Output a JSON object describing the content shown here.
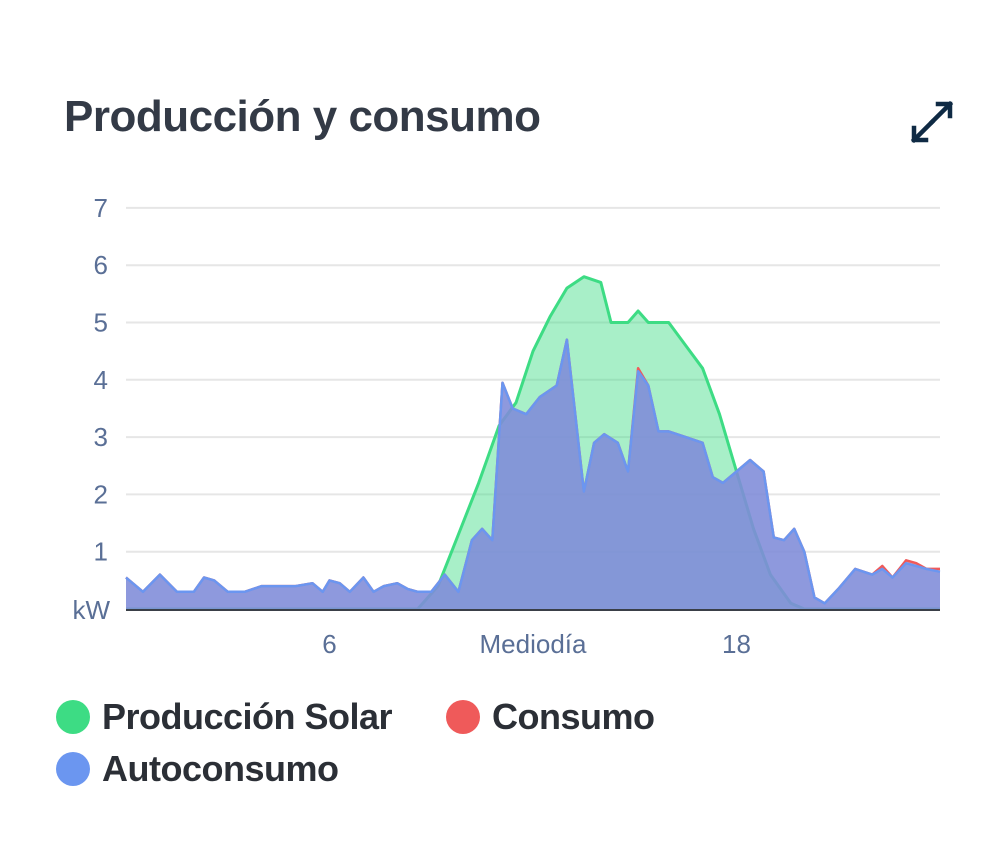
{
  "header": {
    "title": "Producción y consumo",
    "expand_icon": "expand-arrows-icon"
  },
  "colors": {
    "produccion": "#3ddc84",
    "consumo": "#ef5a5a",
    "autoconsumo": "#6b96f0",
    "axis_text": "#5a6f96",
    "grid": "#e6e6e6"
  },
  "legend": [
    {
      "key": "produccion",
      "label": "Producción Solar"
    },
    {
      "key": "consumo",
      "label": "Consumo"
    },
    {
      "key": "autoconsumo",
      "label": "Autoconsumo"
    }
  ],
  "chart_data": {
    "type": "area",
    "title": "Producción y consumo",
    "ylabel": "kW",
    "xlabel": "",
    "xlim": [
      0,
      24
    ],
    "ylim": [
      0,
      7
    ],
    "y_ticks": [
      1,
      2,
      3,
      4,
      5,
      6,
      7
    ],
    "x_ticks": [
      {
        "value": 6,
        "label": "6"
      },
      {
        "value": 12,
        "label": "Mediodía"
      },
      {
        "value": 18,
        "label": "18"
      }
    ],
    "grid": true,
    "legend_position": "bottom",
    "series": [
      {
        "key": "produccion",
        "name": "Producción Solar",
        "points": [
          [
            0,
            0
          ],
          [
            8.6,
            0
          ],
          [
            9.2,
            0.4
          ],
          [
            9.8,
            1.3
          ],
          [
            10.4,
            2.2
          ],
          [
            11.0,
            3.2
          ],
          [
            11.5,
            3.6
          ],
          [
            12.0,
            4.5
          ],
          [
            12.5,
            5.1
          ],
          [
            13.0,
            5.6
          ],
          [
            13.5,
            5.8
          ],
          [
            14.0,
            5.7
          ],
          [
            14.3,
            5.0
          ],
          [
            14.8,
            5.0
          ],
          [
            15.1,
            5.2
          ],
          [
            15.4,
            5.0
          ],
          [
            16.0,
            5.0
          ],
          [
            16.5,
            4.6
          ],
          [
            17.0,
            4.2
          ],
          [
            17.5,
            3.4
          ],
          [
            18.0,
            2.4
          ],
          [
            18.5,
            1.4
          ],
          [
            19.0,
            0.6
          ],
          [
            19.6,
            0.1
          ],
          [
            20.0,
            0
          ],
          [
            24,
            0
          ]
        ]
      },
      {
        "key": "consumo",
        "name": "Consumo",
        "points": [
          [
            0,
            0.55
          ],
          [
            0.5,
            0.3
          ],
          [
            1.0,
            0.6
          ],
          [
            1.5,
            0.3
          ],
          [
            2.0,
            0.3
          ],
          [
            2.3,
            0.55
          ],
          [
            2.6,
            0.5
          ],
          [
            3.0,
            0.3
          ],
          [
            3.5,
            0.3
          ],
          [
            4.0,
            0.4
          ],
          [
            4.5,
            0.4
          ],
          [
            5.0,
            0.4
          ],
          [
            5.5,
            0.45
          ],
          [
            5.8,
            0.3
          ],
          [
            6.0,
            0.5
          ],
          [
            6.3,
            0.45
          ],
          [
            6.6,
            0.3
          ],
          [
            7.0,
            0.55
          ],
          [
            7.3,
            0.3
          ],
          [
            7.6,
            0.4
          ],
          [
            8.0,
            0.45
          ],
          [
            8.3,
            0.35
          ],
          [
            8.6,
            0.3
          ],
          [
            9.0,
            0.3
          ],
          [
            9.4,
            0.6
          ],
          [
            9.8,
            0.3
          ],
          [
            10.2,
            1.2
          ],
          [
            10.5,
            1.4
          ],
          [
            10.8,
            1.2
          ],
          [
            11.1,
            3.95
          ],
          [
            11.4,
            3.5
          ],
          [
            11.8,
            3.4
          ],
          [
            12.2,
            3.7
          ],
          [
            12.7,
            3.9
          ],
          [
            13.0,
            4.7
          ],
          [
            13.5,
            2.05
          ],
          [
            13.8,
            2.9
          ],
          [
            14.1,
            3.05
          ],
          [
            14.5,
            2.9
          ],
          [
            14.8,
            2.4
          ],
          [
            15.1,
            4.2
          ],
          [
            15.4,
            3.9
          ],
          [
            15.7,
            3.1
          ],
          [
            16.0,
            3.1
          ],
          [
            16.5,
            3.0
          ],
          [
            17.0,
            2.9
          ],
          [
            17.3,
            2.3
          ],
          [
            17.6,
            2.2
          ],
          [
            18.0,
            2.4
          ],
          [
            18.4,
            2.6
          ],
          [
            18.8,
            2.4
          ],
          [
            19.1,
            1.25
          ],
          [
            19.4,
            1.2
          ],
          [
            19.7,
            1.4
          ],
          [
            20.0,
            1.0
          ],
          [
            20.3,
            0.2
          ],
          [
            20.6,
            0.1
          ],
          [
            21.0,
            0.35
          ],
          [
            21.5,
            0.7
          ],
          [
            22.0,
            0.6
          ],
          [
            22.3,
            0.75
          ],
          [
            22.6,
            0.55
          ],
          [
            23.0,
            0.85
          ],
          [
            23.3,
            0.8
          ],
          [
            23.6,
            0.7
          ],
          [
            24,
            0.7
          ]
        ]
      },
      {
        "key": "autoconsumo",
        "name": "Autoconsumo",
        "points": [
          [
            0,
            0.55
          ],
          [
            0.5,
            0.3
          ],
          [
            1.0,
            0.6
          ],
          [
            1.5,
            0.3
          ],
          [
            2.0,
            0.3
          ],
          [
            2.3,
            0.55
          ],
          [
            2.6,
            0.5
          ],
          [
            3.0,
            0.3
          ],
          [
            3.5,
            0.3
          ],
          [
            4.0,
            0.4
          ],
          [
            4.5,
            0.4
          ],
          [
            5.0,
            0.4
          ],
          [
            5.5,
            0.45
          ],
          [
            5.8,
            0.3
          ],
          [
            6.0,
            0.5
          ],
          [
            6.3,
            0.45
          ],
          [
            6.6,
            0.3
          ],
          [
            7.0,
            0.55
          ],
          [
            7.3,
            0.3
          ],
          [
            7.6,
            0.4
          ],
          [
            8.0,
            0.45
          ],
          [
            8.3,
            0.35
          ],
          [
            8.6,
            0.3
          ],
          [
            9.0,
            0.3
          ],
          [
            9.4,
            0.6
          ],
          [
            9.8,
            0.3
          ],
          [
            10.2,
            1.2
          ],
          [
            10.5,
            1.4
          ],
          [
            10.8,
            1.2
          ],
          [
            11.1,
            3.95
          ],
          [
            11.4,
            3.5
          ],
          [
            11.8,
            3.4
          ],
          [
            12.2,
            3.7
          ],
          [
            12.7,
            3.9
          ],
          [
            13.0,
            4.7
          ],
          [
            13.5,
            2.05
          ],
          [
            13.8,
            2.9
          ],
          [
            14.1,
            3.05
          ],
          [
            14.5,
            2.9
          ],
          [
            14.8,
            2.4
          ],
          [
            15.1,
            4.15
          ],
          [
            15.4,
            3.9
          ],
          [
            15.7,
            3.1
          ],
          [
            16.0,
            3.1
          ],
          [
            16.5,
            3.0
          ],
          [
            17.0,
            2.9
          ],
          [
            17.3,
            2.3
          ],
          [
            17.6,
            2.2
          ],
          [
            18.0,
            2.4
          ],
          [
            18.4,
            2.6
          ],
          [
            18.8,
            2.4
          ],
          [
            19.1,
            1.25
          ],
          [
            19.4,
            1.2
          ],
          [
            19.7,
            1.4
          ],
          [
            20.0,
            1.0
          ],
          [
            20.3,
            0.2
          ],
          [
            20.6,
            0.1
          ],
          [
            21.0,
            0.35
          ],
          [
            21.5,
            0.7
          ],
          [
            22.0,
            0.6
          ],
          [
            22.3,
            0.7
          ],
          [
            22.6,
            0.55
          ],
          [
            23.0,
            0.8
          ],
          [
            23.3,
            0.75
          ],
          [
            23.6,
            0.7
          ],
          [
            24,
            0.65
          ]
        ]
      }
    ]
  }
}
